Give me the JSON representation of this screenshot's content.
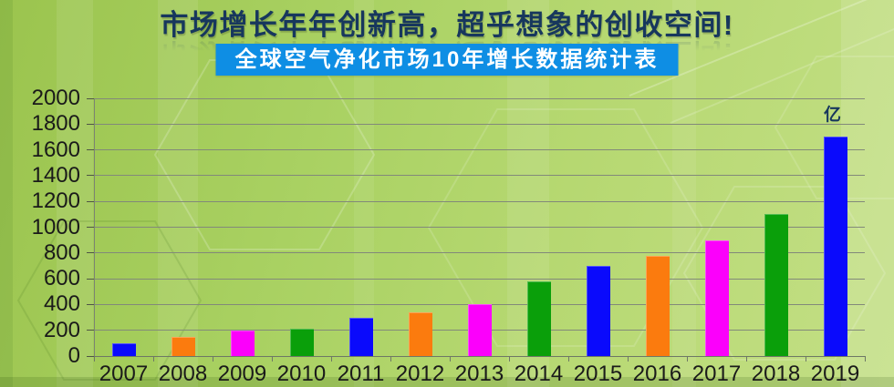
{
  "header": {
    "title": "市场增长年年创新高，超乎想象的创收空间!",
    "banner": "全球空气净化市场10年增长数据统计表"
  },
  "chart_data": {
    "type": "bar",
    "title": "全球空气净化市场10年增长数据统计表",
    "categories": [
      "2007",
      "2008",
      "2009",
      "2010",
      "2011",
      "2012",
      "2013",
      "2014",
      "2015",
      "2016",
      "2017",
      "2018",
      "2019"
    ],
    "values": [
      100,
      150,
      200,
      210,
      300,
      340,
      400,
      580,
      700,
      780,
      900,
      1100,
      1700
    ],
    "unit_label": "亿",
    "xlabel": "",
    "ylabel": "",
    "ylim": [
      0,
      2000
    ],
    "ytick_step": 200,
    "grid": true,
    "legend_position": "none",
    "bar_color_cycle": [
      "#0a0afc",
      "#fb7b0e",
      "#fb00fb",
      "#0a9f0a"
    ]
  },
  "colors": {
    "title_text": "#17375d",
    "banner_bg": "#0e8ee4",
    "banner_text": "#ffffff",
    "axis_text": "#1a1a1a",
    "gridline": "#82897a"
  }
}
